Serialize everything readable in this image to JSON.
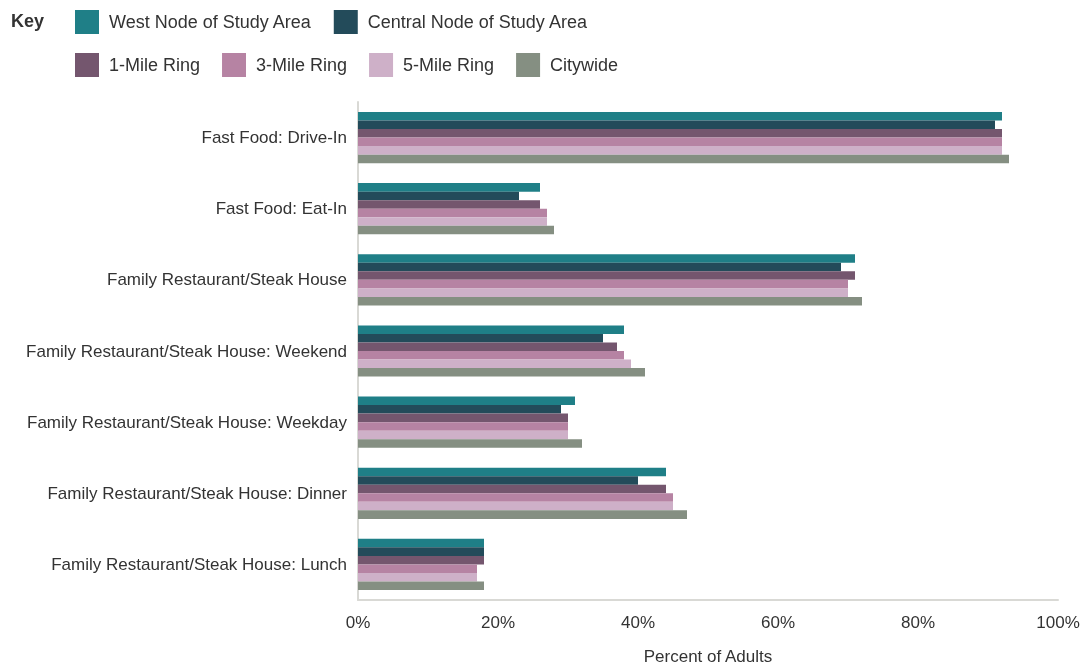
{
  "chart_data": {
    "type": "bar",
    "orientation": "horizontal",
    "legend_title": "Key",
    "xlabel": "Percent of Adults",
    "categories": [
      "Fast Food: Drive-In",
      "Fast Food: Eat-In",
      "Family Restaurant/Steak House",
      "Family Restaurant/Steak House: Weekend",
      "Family Restaurant/Steak House: Weekday",
      "Family Restaurant/Steak House: Dinner",
      "Family Restaurant/Steak House: Lunch"
    ],
    "series": [
      {
        "name": "West Node of Study Area",
        "color": "#1f7f87",
        "values": [
          92,
          26,
          71,
          38,
          31,
          44,
          18
        ]
      },
      {
        "name": "Central Node of Study Area",
        "color": "#234b5a",
        "values": [
          91,
          23,
          69,
          35,
          29,
          40,
          18
        ]
      },
      {
        "name": "1-Mile Ring",
        "color": "#74566e",
        "values": [
          92,
          26,
          71,
          37,
          30,
          44,
          18
        ]
      },
      {
        "name": "3-Mile Ring",
        "color": "#b683a3",
        "values": [
          92,
          27,
          70,
          38,
          30,
          45,
          17
        ]
      },
      {
        "name": "5-Mile Ring",
        "color": "#ceb0c8",
        "values": [
          92,
          27,
          70,
          39,
          30,
          45,
          17
        ]
      },
      {
        "name": "Citywide",
        "color": "#858f82",
        "values": [
          93,
          28,
          72,
          41,
          32,
          47,
          18
        ]
      }
    ],
    "xlim": [
      0,
      100
    ],
    "xticks": [
      {
        "value": 0,
        "label": "0%"
      },
      {
        "value": 20,
        "label": "20%"
      },
      {
        "value": 40,
        "label": "40%"
      },
      {
        "value": 60,
        "label": "60%"
      },
      {
        "value": 80,
        "label": "80%"
      },
      {
        "value": 100,
        "label": "100%"
      }
    ],
    "grid": false,
    "legend": "top left"
  }
}
